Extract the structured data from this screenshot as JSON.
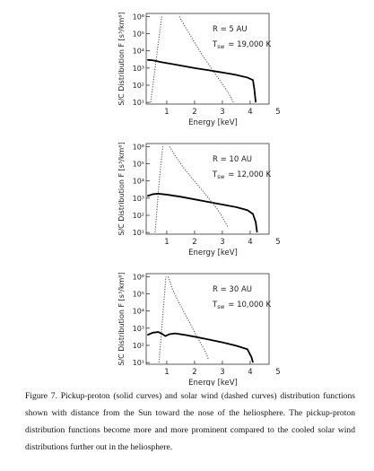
{
  "chart_data": [
    {
      "type": "line",
      "yscale": "log",
      "xlim": [
        0.26,
        4.68
      ],
      "ylim": [
        8,
        1500000
      ],
      "xticks": [
        1,
        2,
        3,
        4,
        5
      ],
      "yticks": [
        {
          "value": 10,
          "label": "10¹"
        },
        {
          "value": 100,
          "label": "10²"
        },
        {
          "value": 1000,
          "label": "10³"
        },
        {
          "value": 10000,
          "label": "10⁴"
        },
        {
          "value": 100000,
          "label": "10⁵"
        },
        {
          "value": 1000000,
          "label": "10⁶"
        }
      ],
      "xlabel": "Energy [keV]",
      "ylabel": "S/C Distribution F [s³/km⁶]",
      "distance": "R = 5 AU",
      "temperature": {
        "symbol": "T",
        "subscript": "sw",
        "value": "= 19,000 K"
      },
      "series": [
        {
          "color": "#000000",
          "style": "solid",
          "x": [
            0.3,
            0.5,
            0.8,
            1.2,
            1.6,
            2,
            2.5,
            3,
            3.5,
            3.9,
            4.1,
            4.15,
            4.2
          ],
          "values": [
            3000,
            2800,
            2200,
            1700,
            1300,
            1000,
            750,
            550,
            400,
            280,
            200,
            60,
            10
          ]
        },
        {
          "color": "#555555",
          "style": "dotted",
          "x": [
            0.42,
            0.5,
            0.58,
            0.66,
            0.74,
            0.82
          ],
          "values": [
            10,
            100,
            1000,
            10000,
            100000,
            1000000
          ]
        },
        {
          "color": "#555555",
          "style": "dotted",
          "x": [
            1.45,
            1.7,
            2,
            2.3,
            2.6,
            2.9,
            3.2,
            3.4
          ],
          "values": [
            1000000,
            200000,
            30000,
            5000,
            1000,
            200,
            40,
            10
          ]
        }
      ]
    },
    {
      "type": "line",
      "yscale": "log",
      "xlim": [
        0.26,
        4.68
      ],
      "ylim": [
        8,
        1500000
      ],
      "xticks": [
        1,
        2,
        3,
        4,
        5
      ],
      "yticks": [
        {
          "value": 10,
          "label": "10¹"
        },
        {
          "value": 100,
          "label": "10²"
        },
        {
          "value": 1000,
          "label": "10³"
        },
        {
          "value": 10000,
          "label": "10⁴"
        },
        {
          "value": 100000,
          "label": "10⁵"
        },
        {
          "value": 1000000,
          "label": "10⁶"
        }
      ],
      "xlabel": "Energy [keV]",
      "ylabel": "S/C Distribution F [s³/km⁶]",
      "distance": "R = 10 AU",
      "temperature": {
        "symbol": "T",
        "subscript": "sw",
        "value": "= 12,000 K"
      },
      "series": [
        {
          "color": "#000000",
          "style": "solid",
          "x": [
            0.3,
            0.5,
            0.7,
            1,
            1.5,
            2,
            2.5,
            3,
            3.5,
            3.9,
            4.1,
            4.2,
            4.25
          ],
          "values": [
            1300,
            1700,
            1800,
            1600,
            1200,
            850,
            600,
            420,
            300,
            200,
            120,
            40,
            10
          ]
        },
        {
          "color": "#555555",
          "style": "dotted",
          "x": [
            0.58,
            0.63,
            0.68,
            0.73,
            0.79,
            0.86
          ],
          "values": [
            10,
            100,
            1000,
            10000,
            100000,
            1000000
          ]
        },
        {
          "color": "#555555",
          "style": "dotted",
          "x": [
            1.1,
            1.3,
            1.6,
            1.9,
            2.2,
            2.5,
            2.8,
            3,
            3.2
          ],
          "values": [
            1000000,
            300000,
            60000,
            15000,
            4000,
            1000,
            250,
            80,
            20
          ]
        }
      ]
    },
    {
      "type": "line",
      "yscale": "log",
      "xlim": [
        0.26,
        4.68
      ],
      "ylim": [
        8,
        1500000
      ],
      "xticks": [
        1,
        2,
        3,
        4,
        5
      ],
      "yticks": [
        {
          "value": 10,
          "label": "10¹"
        },
        {
          "value": 100,
          "label": "10²"
        },
        {
          "value": 1000,
          "label": "10³"
        },
        {
          "value": 10000,
          "label": "10⁴"
        },
        {
          "value": 100000,
          "label": "10⁵"
        },
        {
          "value": 1000000,
          "label": "10⁶"
        }
      ],
      "xlabel": "Energy [keV]",
      "ylabel": "S/C Distribution F [s³/km⁶]",
      "distance": "R = 30 AU",
      "temperature": {
        "symbol": "T",
        "subscript": "sw",
        "value": "= 10,000 K"
      },
      "series": [
        {
          "color": "#000000",
          "style": "solid",
          "x": [
            0.3,
            0.5,
            0.7,
            0.85,
            0.95,
            1.1,
            1.3,
            1.6,
            2,
            2.5,
            3,
            3.5,
            3.9,
            4.05,
            4.1
          ],
          "values": [
            400,
            550,
            600,
            450,
            350,
            450,
            500,
            420,
            320,
            220,
            150,
            95,
            60,
            20,
            10
          ]
        },
        {
          "color": "#555555",
          "style": "dotted",
          "x": [
            0.72,
            0.77,
            0.82,
            0.87,
            0.92,
            0.97
          ],
          "values": [
            10,
            100,
            1000,
            10000,
            100000,
            1000000
          ]
        },
        {
          "color": "#555555",
          "style": "dotted",
          "x": [
            1.05,
            1.2,
            1.4,
            1.6,
            1.8,
            2,
            2.2,
            2.4,
            2.5
          ],
          "values": [
            1000000,
            200000,
            40000,
            10000,
            2500,
            600,
            150,
            40,
            15
          ]
        }
      ]
    }
  ],
  "caption": "Figure 7. Pickup-proton (solid curves) and solar wind (dashed curves) distribution functions shown with distance from the Sun toward the nose of the heliosphere. The pickup-proton distribution functions become more and more prominent compared to the cooled solar wind distributions further out in the heliosphere."
}
